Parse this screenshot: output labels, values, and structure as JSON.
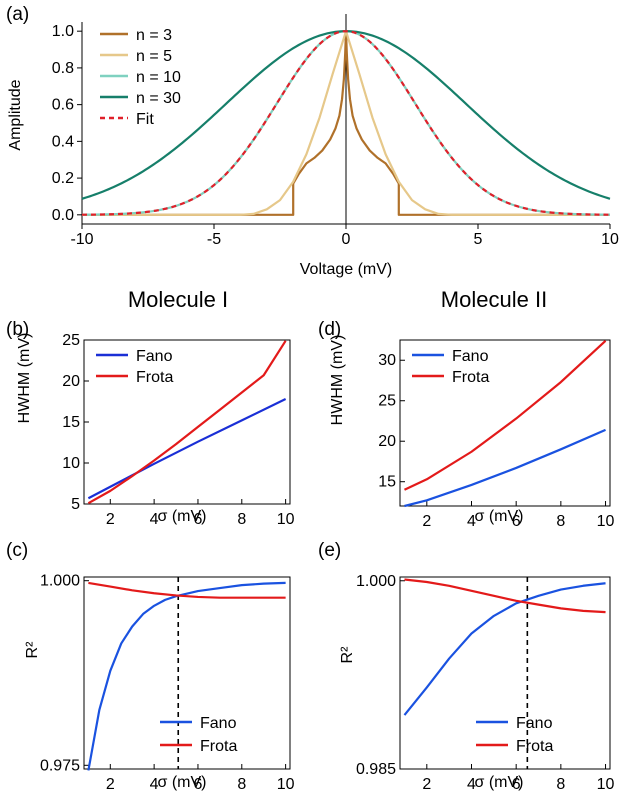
{
  "chart_data": [
    {
      "panel": "(a)",
      "type": "line",
      "xlabel": "Voltage (mV)",
      "ylabel": "Amplitude",
      "xlim": [
        -10,
        10
      ],
      "ylim": [
        -0.05,
        1.05
      ],
      "xticks": [
        -10,
        -5,
        0,
        5,
        10
      ],
      "xtick_labels": [
        "-10",
        "-5",
        "0",
        "5",
        "10"
      ],
      "yticks": [
        0.0,
        0.2,
        0.4,
        0.6,
        0.8,
        1.0
      ],
      "ytick_labels": [
        "0.0",
        "0.2",
        "0.4",
        "0.6",
        "0.8",
        "1.0"
      ],
      "legend_position": "top-left",
      "series": [
        {
          "name": "n = 3",
          "color": "#b0712a",
          "style": "solid",
          "x": [
            -10,
            -2.0,
            -2.0,
            -1.8,
            -1.5,
            -1.2,
            -0.9,
            -0.6,
            -0.4,
            -0.25,
            -0.15,
            -0.08,
            -0.03,
            0,
            0.03,
            0.08,
            0.15,
            0.25,
            0.4,
            0.6,
            0.9,
            1.2,
            1.5,
            1.8,
            2.0,
            2.0,
            10
          ],
          "y": [
            0,
            0,
            0.17,
            0.22,
            0.28,
            0.31,
            0.35,
            0.41,
            0.47,
            0.54,
            0.63,
            0.74,
            0.88,
            1.0,
            0.88,
            0.74,
            0.63,
            0.54,
            0.47,
            0.41,
            0.35,
            0.31,
            0.28,
            0.22,
            0.17,
            0,
            0
          ]
        },
        {
          "name": "n = 5",
          "color": "#e6c88a",
          "style": "solid",
          "x": [
            -10,
            -4.0,
            -3.5,
            -3.0,
            -2.5,
            -2.0,
            -1.5,
            -1.0,
            -0.5,
            0,
            0.5,
            1.0,
            1.5,
            2.0,
            2.5,
            3.0,
            3.5,
            4.0,
            10
          ],
          "y": [
            0,
            0,
            0.005,
            0.03,
            0.08,
            0.18,
            0.33,
            0.53,
            0.77,
            1.0,
            0.77,
            0.53,
            0.33,
            0.18,
            0.08,
            0.03,
            0.005,
            0,
            0
          ]
        },
        {
          "name": "n = 10",
          "color": "#7fd1c0",
          "style": "solid",
          "sigma": 2.62
        },
        {
          "name": "n = 30",
          "color": "#167f6a",
          "style": "solid",
          "sigma": 4.53
        },
        {
          "name": "Fit",
          "color": "#e0202a",
          "style": "dashed",
          "sigma": 2.62
        }
      ]
    },
    {
      "panel": "(b)",
      "title": "Molecule I",
      "type": "line",
      "xlabel": "σ (mV)",
      "ylabel": "HWHM (mV)",
      "xlim": [
        0.8,
        10.2
      ],
      "ylim": [
        5,
        25
      ],
      "xticks": [
        2,
        4,
        6,
        8,
        10
      ],
      "xtick_labels": [
        "2",
        "4",
        "6",
        "8",
        "10"
      ],
      "yticks": [
        5,
        10,
        15,
        20,
        25
      ],
      "ytick_labels": [
        "5",
        "10",
        "15",
        "20",
        "25"
      ],
      "legend_position": "top-left",
      "series": [
        {
          "name": "Fano",
          "color": "#1a2fd6",
          "x": [
            1,
            2,
            4,
            6,
            8,
            10
          ],
          "y": [
            5.7,
            7.1,
            9.9,
            12.6,
            15.2,
            17.8
          ]
        },
        {
          "name": "Frota",
          "color": "#e31a1a",
          "x": [
            1,
            2,
            3,
            4,
            5,
            6,
            7,
            8,
            9,
            10
          ],
          "y": [
            5.1,
            6.6,
            8.4,
            10.3,
            12.3,
            14.4,
            16.5,
            18.6,
            20.7,
            24.9
          ]
        }
      ]
    },
    {
      "panel": "(c)",
      "type": "line",
      "xlabel": "σ (mV)",
      "ylabel": "R²",
      "xlim": [
        0.8,
        10.2
      ],
      "ylim": [
        0.9745,
        1.0005
      ],
      "xticks": [
        2,
        4,
        6,
        8,
        10
      ],
      "xtick_labels": [
        "2",
        "4",
        "6",
        "8",
        "10"
      ],
      "yticks": [
        1.0,
        0.975
      ],
      "ytick_labels": [
        "1.000",
        "0.975"
      ],
      "vline_x": 5.1,
      "legend_position": "bottom-right",
      "series": [
        {
          "name": "Fano",
          "color": "#1a52e0",
          "x": [
            1,
            1.5,
            2,
            2.5,
            3,
            3.5,
            4,
            4.5,
            5,
            6,
            7,
            8,
            9,
            10
          ],
          "y": [
            0.9743,
            0.9825,
            0.9878,
            0.9915,
            0.9938,
            0.9955,
            0.9966,
            0.9974,
            0.9979,
            0.9986,
            0.999,
            0.9994,
            0.9996,
            0.9997
          ]
        },
        {
          "name": "Frota",
          "color": "#e31a1a",
          "x": [
            1,
            2,
            3,
            4,
            5,
            6,
            7,
            8,
            9,
            10
          ],
          "y": [
            0.9997,
            0.9992,
            0.9987,
            0.9983,
            0.998,
            0.9978,
            0.9977,
            0.9977,
            0.9977,
            0.9977
          ]
        }
      ]
    },
    {
      "panel": "(d)",
      "title": "Molecule II",
      "type": "line",
      "xlabel": "σ (mV)",
      "ylabel": "HWHM (mV)",
      "xlim": [
        0.8,
        10.2
      ],
      "ylim": [
        12,
        32.5
      ],
      "xticks": [
        2,
        4,
        6,
        8,
        10
      ],
      "xtick_labels": [
        "2",
        "4",
        "6",
        "8",
        "10"
      ],
      "yticks": [
        15,
        20,
        25,
        30
      ],
      "ytick_labels": [
        "15",
        "20",
        "25",
        "30"
      ],
      "legend_position": "top-left",
      "series": [
        {
          "name": "Fano",
          "color": "#1a52e0",
          "x": [
            1,
            2,
            4,
            6,
            8,
            10
          ],
          "y": [
            12.0,
            12.7,
            14.6,
            16.7,
            19.0,
            21.4
          ]
        },
        {
          "name": "Frota",
          "color": "#e31a1a",
          "x": [
            1,
            2,
            4,
            6,
            8,
            10
          ],
          "y": [
            14.0,
            15.3,
            18.7,
            22.8,
            27.3,
            32.4
          ]
        }
      ]
    },
    {
      "panel": "(e)",
      "type": "line",
      "xlabel": "σ (mV)",
      "ylabel": "R²",
      "xlim": [
        0.8,
        10.2
      ],
      "ylim": [
        0.985,
        1.0003
      ],
      "xticks": [
        2,
        4,
        6,
        8,
        10
      ],
      "xtick_labels": [
        "2",
        "4",
        "6",
        "8",
        "10"
      ],
      "yticks": [
        1.0,
        0.985
      ],
      "ytick_labels": [
        "1.000",
        "0.985"
      ],
      "vline_x": 6.5,
      "legend_position": "bottom-right",
      "series": [
        {
          "name": "Fano",
          "color": "#1a52e0",
          "x": [
            1,
            2,
            3,
            4,
            5,
            6,
            7,
            8,
            9,
            10
          ],
          "y": [
            0.9893,
            0.9915,
            0.9938,
            0.9958,
            0.9972,
            0.9982,
            0.9988,
            0.9993,
            0.9996,
            0.9998
          ]
        },
        {
          "name": "Frota",
          "color": "#e31a1a",
          "x": [
            1,
            2,
            3,
            4,
            5,
            6,
            7,
            8,
            9,
            10
          ],
          "y": [
            1.0001,
            0.9999,
            0.9996,
            0.9992,
            0.9988,
            0.9984,
            0.9981,
            0.9978,
            0.9976,
            0.9975
          ]
        }
      ]
    }
  ]
}
